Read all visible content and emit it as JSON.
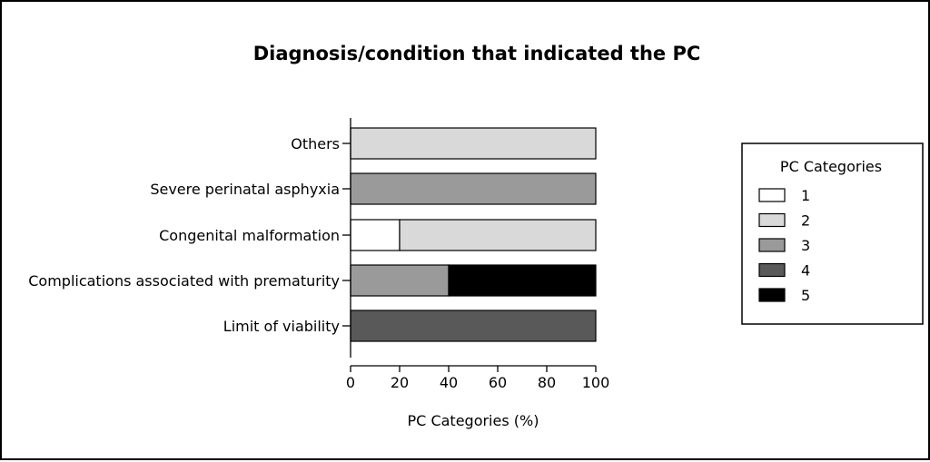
{
  "chart_data": {
    "type": "bar",
    "orientation": "horizontal",
    "stacked": true,
    "title": "Diagnosis/condition that indicated the PC",
    "xlabel": "PC Categories (%)",
    "ylabel": "",
    "xlim": [
      0,
      100
    ],
    "xticks": [
      "0",
      "20",
      "40",
      "60",
      "80",
      "100"
    ],
    "grid": false,
    "legend_position": "right",
    "legend_title": "PC Categories",
    "categories": [
      "Others",
      "Severe perinatal asphyxia",
      "Congenital malformation",
      "Complications associated with prematurity",
      "Limit of viability"
    ],
    "series": [
      {
        "name": "1",
        "color": "#ffffff",
        "values": [
          0,
          0,
          20,
          0,
          0
        ]
      },
      {
        "name": "2",
        "color": "#d9d9d9",
        "values": [
          100,
          0,
          80,
          0,
          0
        ]
      },
      {
        "name": "3",
        "color": "#9a9a9a",
        "values": [
          0,
          100,
          0,
          40,
          0
        ]
      },
      {
        "name": "4",
        "color": "#595959",
        "values": [
          0,
          0,
          0,
          0,
          100
        ]
      },
      {
        "name": "5",
        "color": "#000000",
        "values": [
          0,
          0,
          0,
          60,
          0
        ]
      }
    ]
  }
}
